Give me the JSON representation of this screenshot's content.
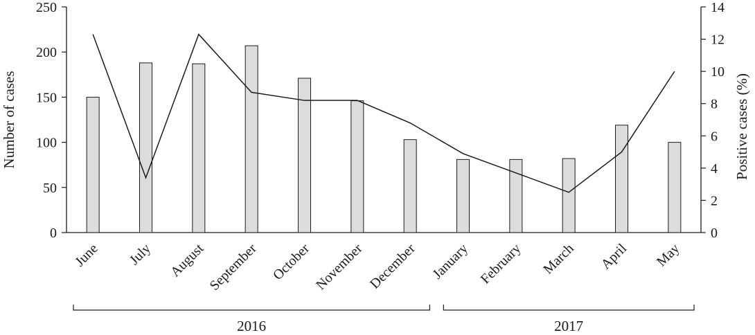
{
  "chart_data": {
    "type": "bar",
    "categories": [
      "June",
      "July",
      "August",
      "September",
      "October",
      "November",
      "December",
      "January",
      "February",
      "March",
      "April",
      "May"
    ],
    "series": [
      {
        "type": "bar",
        "axis": "left",
        "values": [
          150,
          188,
          187,
          207,
          171,
          146,
          103,
          81,
          81,
          82,
          119,
          100
        ],
        "color": "#dcdcdc"
      },
      {
        "type": "line",
        "axis": "right",
        "values": [
          12.3,
          3.4,
          12.3,
          8.7,
          8.2,
          8.2,
          6.8,
          4.9,
          3.7,
          2.5,
          5.0,
          10.0
        ],
        "color": "#1a1a1a"
      }
    ],
    "ylabel": "Number of  cases",
    "ylabel_right": "Positive cases (%)",
    "ylim": [
      0,
      250
    ],
    "ylim_right": [
      0,
      14
    ],
    "yticks": [
      "0",
      "50",
      "100",
      "150",
      "200",
      "250"
    ],
    "yticks_right": [
      "0",
      "2",
      "4",
      "6",
      "8",
      "10",
      "12",
      "14"
    ],
    "groups": [
      {
        "label": "2016",
        "from": 0,
        "to": 6
      },
      {
        "label": "2017",
        "from": 7,
        "to": 11
      }
    ],
    "grid": false,
    "legend": "none"
  }
}
